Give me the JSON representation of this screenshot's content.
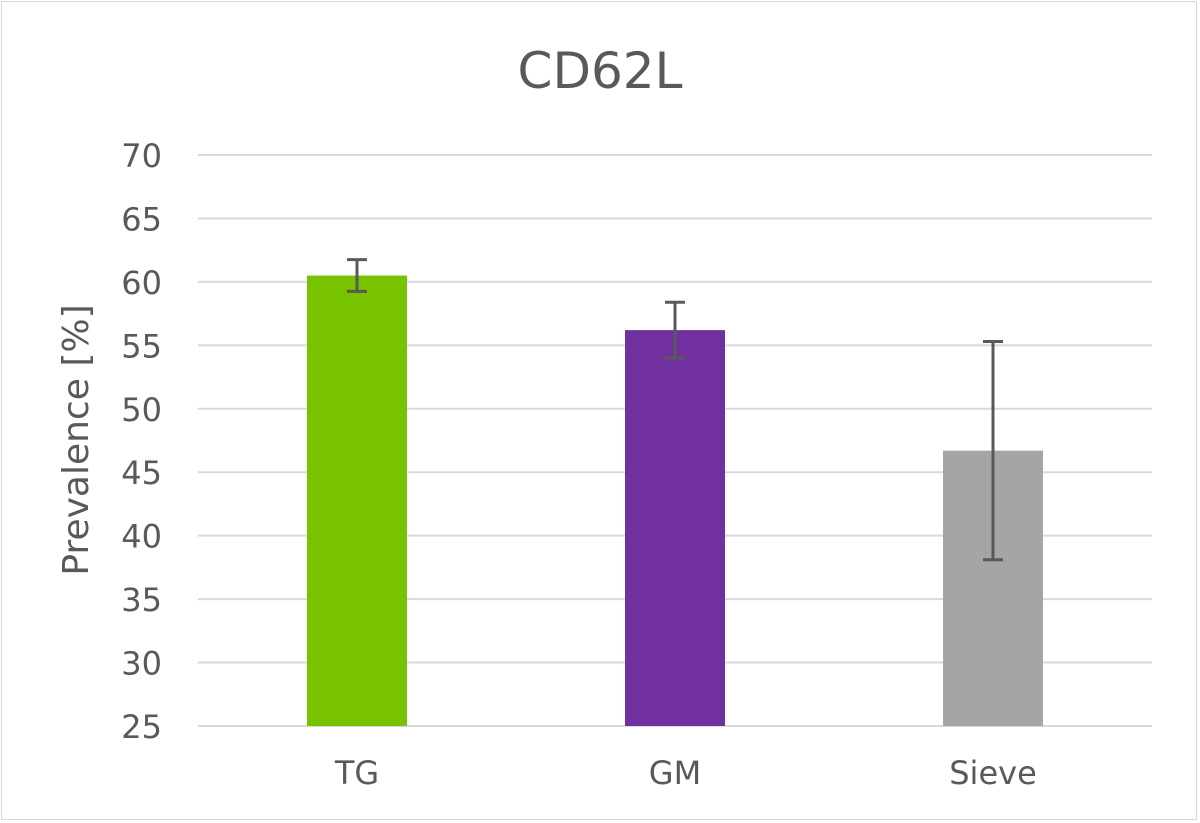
{
  "chart_data": {
    "type": "bar",
    "title": "CD62L",
    "xlabel": "",
    "ylabel": "Prevalence [%]",
    "ylim": [
      25,
      70
    ],
    "yticks": [
      25,
      30,
      35,
      40,
      45,
      50,
      55,
      60,
      65,
      70
    ],
    "grid": true,
    "categories": [
      "TG",
      "GM",
      "Sieve"
    ],
    "values": [
      60.5,
      56.2,
      46.7
    ],
    "errors": [
      1.25,
      2.2,
      8.6
    ],
    "colors": [
      "#77c300",
      "#7030a0",
      "#a5a5a5"
    ]
  }
}
